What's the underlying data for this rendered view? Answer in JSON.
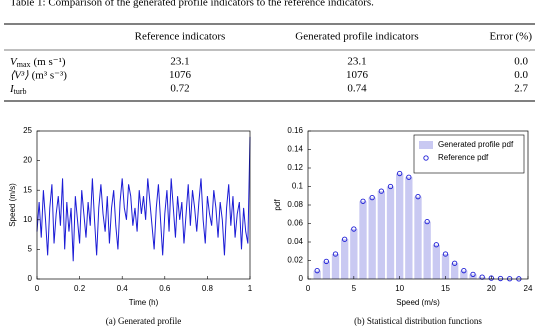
{
  "table": {
    "caption": "Table 1: Comparison of the generated profile indicators to the reference indicators.",
    "header": [
      "Reference indicators",
      "Generated profile indicators",
      "Error (%)"
    ],
    "rows": [
      {
        "label": {
          "main": "V",
          "sub": "max",
          "unit": "(m s⁻¹)"
        },
        "cells": [
          "23.1",
          "23.1",
          "0.0"
        ]
      },
      {
        "label": {
          "main": "⟨V³⟩",
          "unit": "(m³ s⁻³)"
        },
        "cells": [
          "1076",
          "1076",
          "0.0"
        ]
      },
      {
        "label": {
          "main": "I",
          "sub": "turb"
        },
        "cells": [
          "0.72",
          "0.74",
          "2.7"
        ]
      }
    ]
  },
  "chart_data": [
    {
      "type": "line",
      "caption": "(a) Generated profile",
      "xlabel": "Time (h)",
      "ylabel": "Speed (m/s)",
      "xlim": [
        0,
        1
      ],
      "xticks": [
        0,
        0.2,
        0.4,
        0.6,
        0.8,
        1
      ],
      "ylim": [
        0,
        25
      ],
      "yticks": [
        0,
        5,
        10,
        15,
        20,
        25
      ],
      "grid": false,
      "x": [
        0,
        0.01,
        0.02,
        0.03,
        0.04,
        0.05,
        0.06,
        0.07,
        0.08,
        0.09,
        0.1,
        0.11,
        0.12,
        0.13,
        0.14,
        0.15,
        0.16,
        0.17,
        0.18,
        0.19,
        0.2,
        0.21,
        0.22,
        0.23,
        0.24,
        0.25,
        0.26,
        0.27,
        0.28,
        0.29,
        0.3,
        0.31,
        0.32,
        0.33,
        0.34,
        0.35,
        0.36,
        0.37,
        0.38,
        0.39,
        0.4,
        0.41,
        0.42,
        0.43,
        0.44,
        0.45,
        0.46,
        0.47,
        0.48,
        0.49,
        0.5,
        0.51,
        0.52,
        0.53,
        0.54,
        0.55,
        0.56,
        0.57,
        0.58,
        0.59,
        0.6,
        0.61,
        0.62,
        0.63,
        0.64,
        0.65,
        0.66,
        0.67,
        0.68,
        0.69,
        0.7,
        0.71,
        0.72,
        0.73,
        0.74,
        0.75,
        0.76,
        0.77,
        0.78,
        0.79,
        0.8,
        0.81,
        0.82,
        0.83,
        0.84,
        0.85,
        0.86,
        0.87,
        0.88,
        0.89,
        0.9,
        0.91,
        0.92,
        0.93,
        0.94,
        0.95,
        0.96,
        0.97,
        0.98,
        0.99,
        1
      ],
      "series": [
        {
          "color": "#1c1cd6",
          "values": [
            8,
            13,
            7,
            15,
            10,
            4,
            12,
            16,
            6,
            11,
            14,
            9,
            17,
            5,
            13,
            8,
            12,
            3,
            14,
            10,
            6,
            15,
            11,
            7,
            13,
            9,
            17,
            10,
            4,
            12,
            16,
            11,
            8,
            14,
            6,
            12,
            15,
            9,
            5,
            13,
            17,
            12,
            10,
            16,
            14,
            9,
            12,
            8,
            15,
            11,
            14,
            10,
            17,
            13,
            9,
            5,
            12,
            16,
            10,
            4,
            11,
            15,
            8,
            17,
            12,
            7,
            14,
            10,
            13,
            6,
            11,
            16,
            9,
            15,
            12,
            8,
            13,
            17,
            10,
            6,
            14,
            11,
            9,
            15,
            12,
            7,
            13,
            10,
            4,
            12,
            16,
            9,
            14,
            7,
            11,
            13,
            5,
            12,
            8,
            6,
            24
          ]
        }
      ]
    },
    {
      "type": "bar",
      "caption": "(b) Statistical distribution functions",
      "xlabel": "Speed (m/s)",
      "ylabel": "pdf",
      "xlim": [
        0,
        24
      ],
      "xticks": [
        0,
        5,
        10,
        15,
        20,
        24
      ],
      "ylim": [
        0,
        0.16
      ],
      "yticks": [
        0,
        0.02,
        0.04,
        0.06,
        0.08,
        0.1,
        0.12,
        0.14,
        0.16
      ],
      "grid": false,
      "legend": "upper right",
      "x": [
        1,
        2,
        3,
        4,
        5,
        6,
        7,
        8,
        9,
        10,
        11,
        12,
        13,
        14,
        15,
        16,
        17,
        18,
        19,
        20,
        21,
        22,
        23
      ],
      "series": [
        {
          "name": "Generated profile pdf",
          "type": "bar",
          "color": "#c9c9f2",
          "values": [
            0.009,
            0.019,
            0.027,
            0.043,
            0.054,
            0.084,
            0.088,
            0.095,
            0.1,
            0.114,
            0.11,
            0.089,
            0.062,
            0.037,
            0.027,
            0.017,
            0.009,
            0.005,
            0.002,
            0.001,
            0.0005,
            0.0003,
            0.0002
          ]
        },
        {
          "name": "Reference pdf",
          "type": "scatter",
          "color": "#1c1cd6",
          "values": [
            0.009,
            0.019,
            0.027,
            0.043,
            0.054,
            0.084,
            0.088,
            0.095,
            0.1,
            0.114,
            0.11,
            0.089,
            0.062,
            0.037,
            0.027,
            0.017,
            0.009,
            0.005,
            0.002,
            0.001,
            0.0005,
            0.0003,
            0.0002
          ]
        }
      ]
    }
  ]
}
